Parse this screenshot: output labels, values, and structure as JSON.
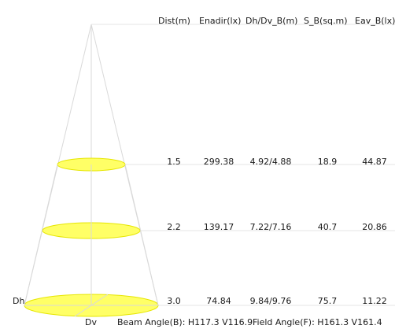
{
  "diagram": {
    "columns": [
      "Dist(m)",
      "Enadir(lx)",
      "Dh/Dv_B(m)",
      "S_B(sq.m)",
      "Eav_B(lx)"
    ],
    "rows": [
      {
        "dist": "1.5",
        "enadir": "299.38",
        "dh_dv": "4.92/4.88",
        "s_b": "18.9",
        "eav_b": "44.87"
      },
      {
        "dist": "2.2",
        "enadir": "139.17",
        "dh_dv": "7.22/7.16",
        "s_b": "40.7",
        "eav_b": "20.86"
      },
      {
        "dist": "3.0",
        "enadir": "74.84",
        "dh_dv": "9.84/9.76",
        "s_b": "75.7",
        "eav_b": "11.22"
      }
    ],
    "dh_label": "Dh",
    "dv_label": "Dv",
    "beam_angle": "Beam Angle(B): H117.3 V116.9",
    "field_angle": "Field Angle(F): H161.3 V161.4",
    "colors": {
      "ellipse_fill": "#ffff66",
      "ellipse_stroke": "#e6e600",
      "cone_line": "#d9d9d9",
      "guide_line": "#e6e6e6"
    }
  }
}
